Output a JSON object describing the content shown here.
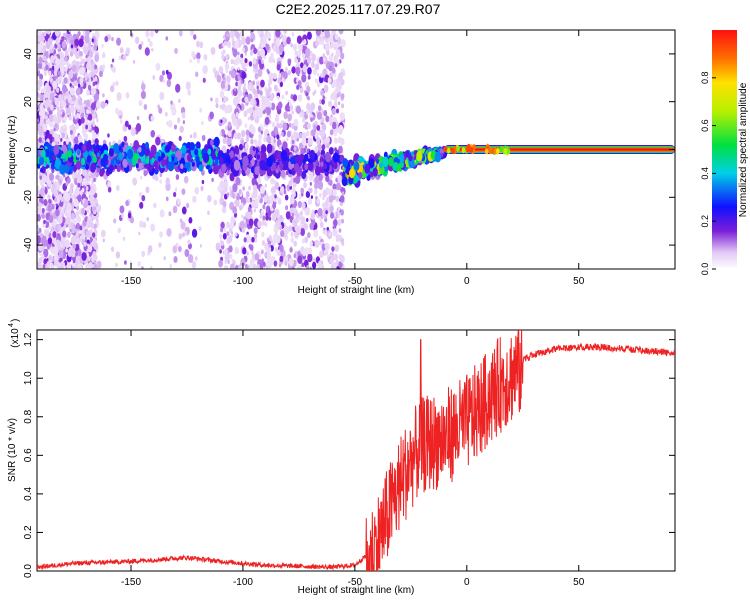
{
  "title": "C2E2.2025.117.07.29.R07",
  "chart_data": [
    {
      "type": "heatmap",
      "xlabel": "Height of straight line (km)",
      "ylabel": "Frequency (Hz)",
      "xlim": [
        -192,
        93
      ],
      "ylim": [
        -50,
        50
      ],
      "xticks": [
        -150,
        -100,
        -50,
        0,
        50
      ],
      "yticks": [
        -40,
        -20,
        0,
        20,
        40
      ],
      "colorbar": {
        "label": "Normalized spectral amplitude",
        "range": [
          0,
          1
        ],
        "ticks": [
          "0.0",
          "0.2",
          "0.4",
          "0.6",
          "0.8"
        ],
        "colormap": "rainbow"
      },
      "bands": [
        {
          "x": [
            -192,
            -110
          ],
          "center_freq": -3,
          "peak_amplitude": 0.45
        },
        {
          "x": [
            -110,
            -55
          ],
          "center_freq": -5,
          "peak_amplitude": 0.2
        },
        {
          "x": [
            -55,
            -10
          ],
          "center_freq": [
            -10,
            -1
          ],
          "peak_amplitude": 0.8
        },
        {
          "x": [
            -10,
            93
          ],
          "center_freq": 0,
          "peak_amplitude": 1.0
        }
      ],
      "scatter_regions": [
        {
          "x": [
            -192,
            -165
          ],
          "density": "high"
        },
        {
          "x": [
            -110,
            -55
          ],
          "density": "high"
        },
        {
          "x": [
            -165,
            -110
          ],
          "density": "low"
        }
      ]
    },
    {
      "type": "line",
      "xlabel": "Height of straight line (km)",
      "ylabel": "SNR (10 * v/v)",
      "y_multiplier": "(x10",
      "y_multiplier_exp": "4",
      "xlim": [
        -192,
        93
      ],
      "ylim": [
        0,
        1.25
      ],
      "xticks": [
        -150,
        -100,
        -50,
        0,
        50
      ],
      "yticks": [
        "0.0",
        "0.2",
        "0.4",
        "0.6",
        "0.8",
        "1.0",
        "1.2"
      ],
      "color": "#ee2222",
      "series_points": [
        [
          -192,
          0.02
        ],
        [
          -175,
          0.04
        ],
        [
          -150,
          0.05
        ],
        [
          -125,
          0.07
        ],
        [
          -110,
          0.05
        ],
        [
          -90,
          0.03
        ],
        [
          -60,
          0.02
        ],
        [
          -50,
          0.03
        ],
        [
          -45,
          0.08
        ],
        [
          -40,
          0.2
        ],
        [
          -35,
          0.35
        ],
        [
          -30,
          0.5
        ],
        [
          -25,
          0.62
        ],
        [
          -20,
          0.7
        ],
        [
          -15,
          0.72
        ],
        [
          -10,
          0.74
        ],
        [
          -5,
          0.78
        ],
        [
          0,
          0.82
        ],
        [
          5,
          0.88
        ],
        [
          10,
          0.95
        ],
        [
          15,
          1.02
        ],
        [
          20,
          1.07
        ],
        [
          25,
          1.11
        ],
        [
          30,
          1.14
        ],
        [
          40,
          1.17
        ],
        [
          50,
          1.18
        ],
        [
          60,
          1.18
        ],
        [
          70,
          1.17
        ],
        [
          80,
          1.16
        ],
        [
          93,
          1.15
        ]
      ],
      "spikes": [
        {
          "x": -20.6,
          "y": 1.2
        }
      ]
    }
  ]
}
